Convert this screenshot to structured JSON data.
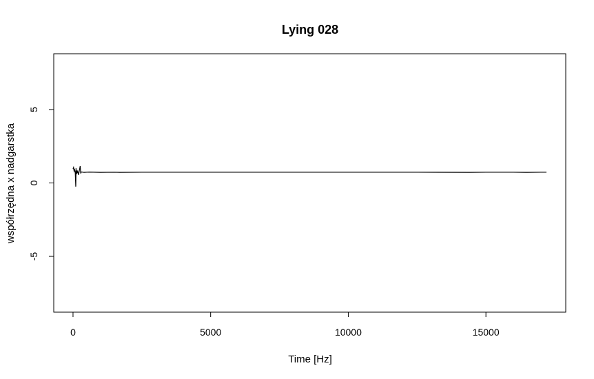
{
  "chart_data": {
    "type": "line",
    "title": "Lying 028",
    "xlabel": "Time [Hz]",
    "ylabel": "współrzędna x nadgarstka",
    "xlim": [
      -700,
      17900
    ],
    "ylim": [
      -8.8,
      8.8
    ],
    "x_ticks": [
      0,
      5000,
      10000,
      15000
    ],
    "x_tick_labels": [
      "0",
      "5000",
      "10000",
      "15000"
    ],
    "y_ticks": [
      -5,
      0,
      5
    ],
    "y_tick_labels": [
      "-5",
      "0",
      "5"
    ],
    "grid": false,
    "legend": "none",
    "series": [
      {
        "color": "#000000",
        "x": [
          0,
          20,
          40,
          60,
          80,
          100,
          110,
          120,
          130,
          150,
          170,
          200,
          230,
          260,
          280,
          300,
          400,
          600,
          1000,
          1500,
          1700,
          2500,
          3500,
          5000,
          7500,
          10000,
          12500,
          14400,
          15000,
          16000,
          16500,
          17000,
          17200
        ],
        "y": [
          0.95,
          1.05,
          0.8,
          0.9,
          0.75,
          -0.25,
          1.0,
          0.6,
          0.85,
          0.7,
          0.8,
          0.55,
          0.85,
          1.15,
          0.65,
          0.75,
          0.72,
          0.74,
          0.72,
          0.73,
          0.72,
          0.73,
          0.73,
          0.73,
          0.73,
          0.73,
          0.73,
          0.72,
          0.73,
          0.73,
          0.72,
          0.73,
          0.73
        ]
      }
    ]
  }
}
